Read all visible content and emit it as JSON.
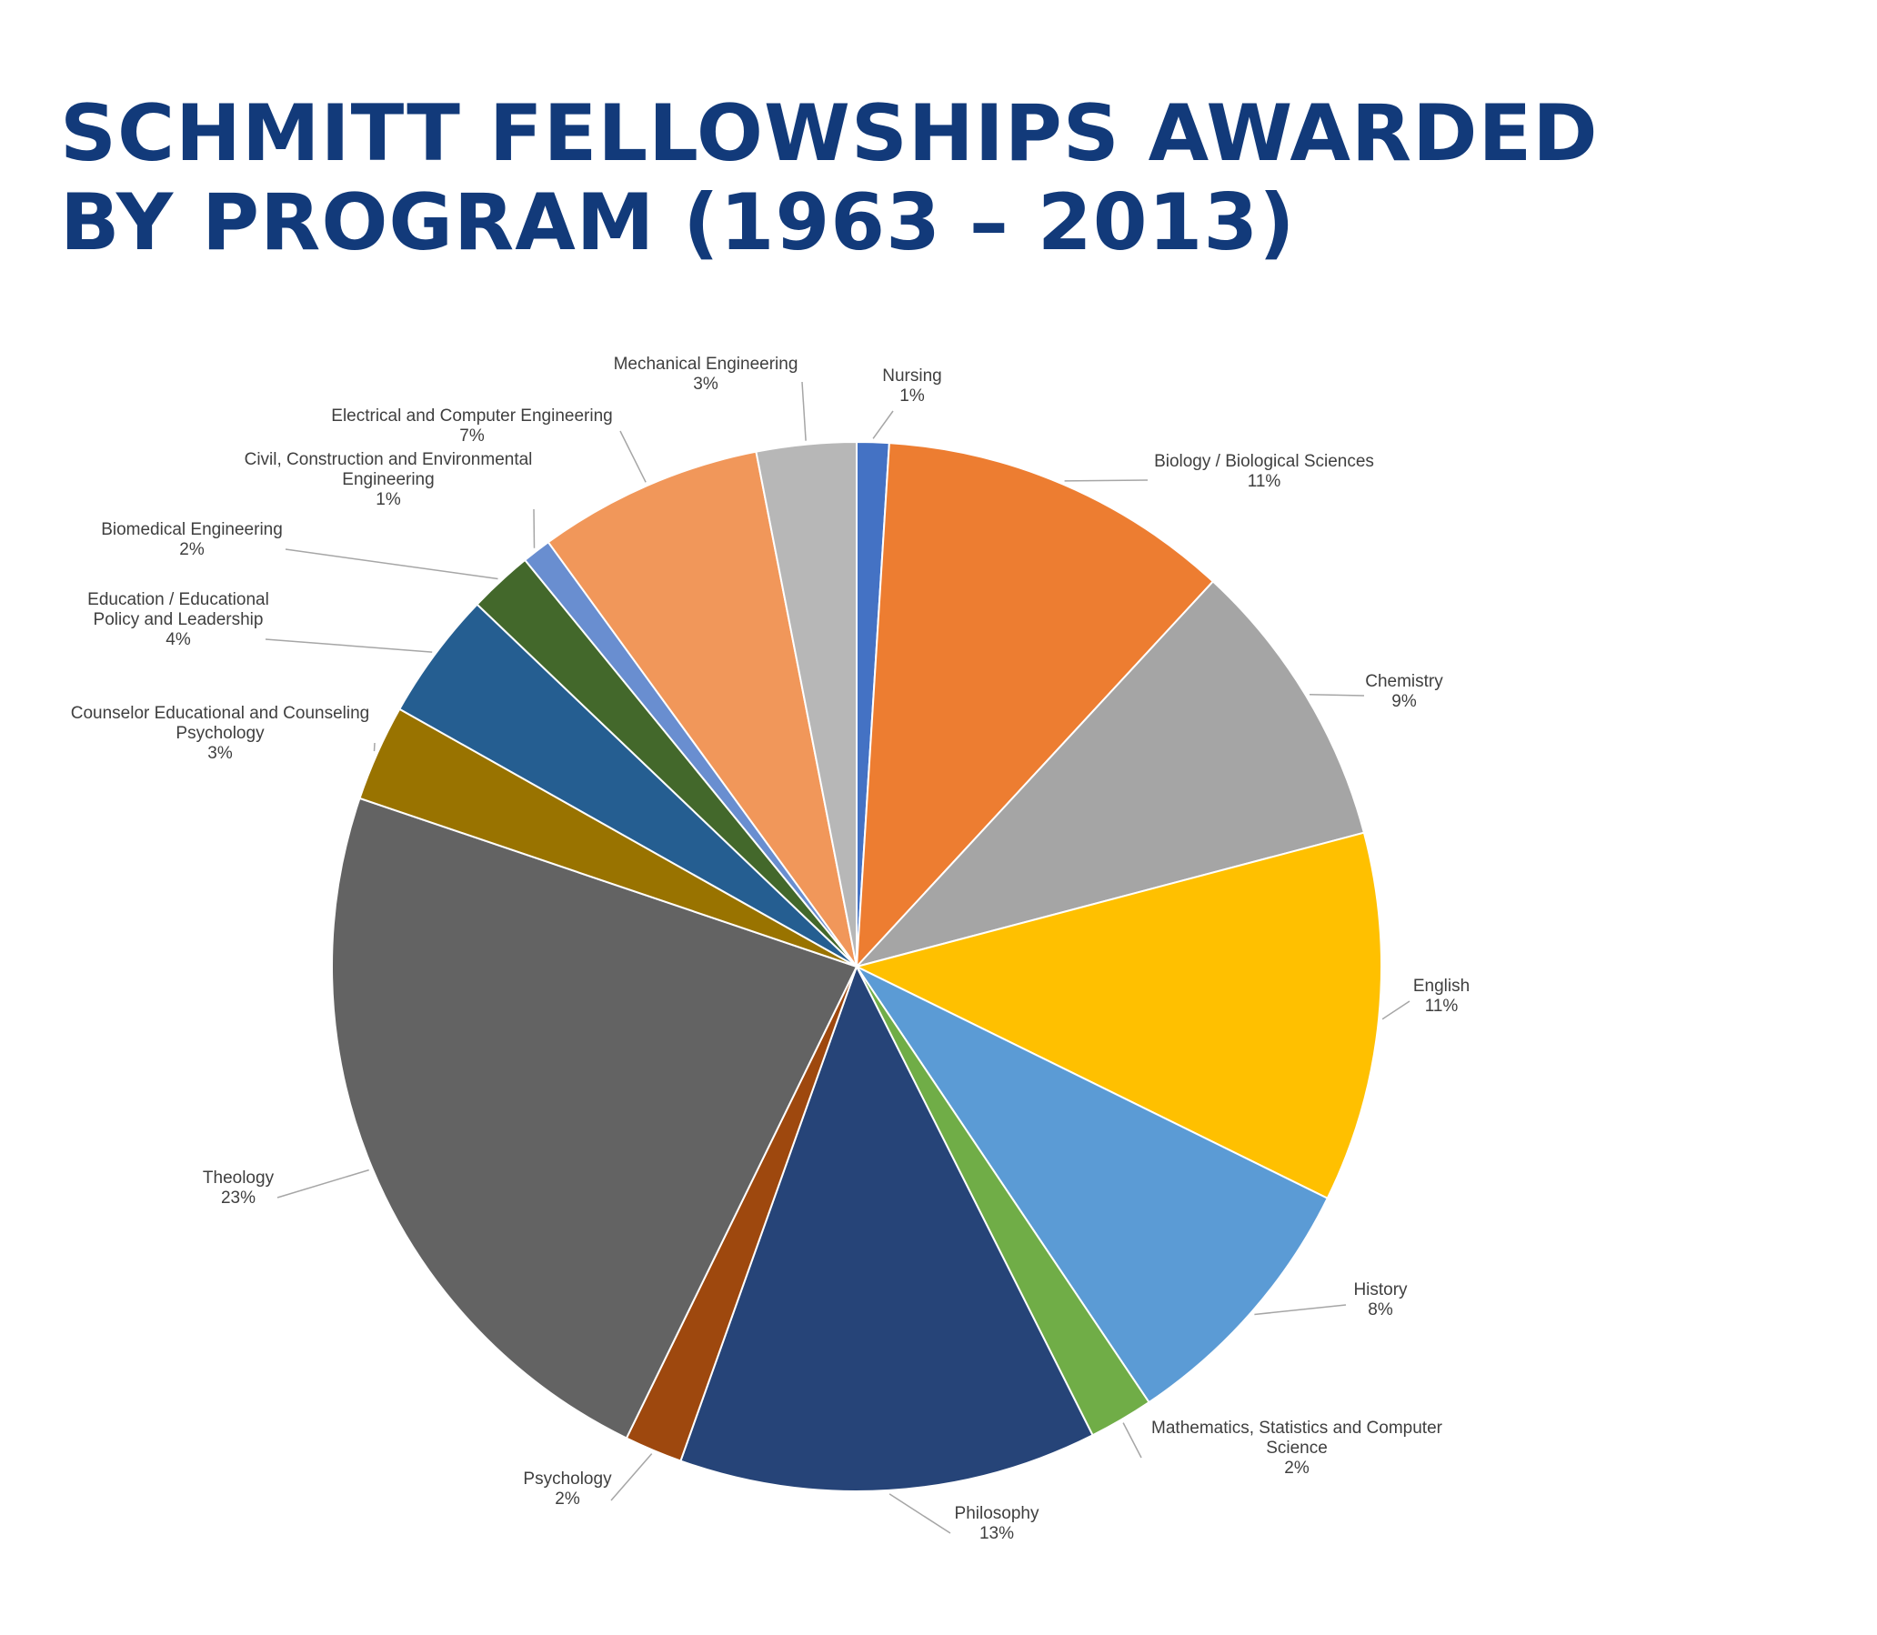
{
  "title": {
    "line1": "SCHMITT FELLOWSHIPS AWARDED",
    "line2": "BY PROGRAM (1963 – 2013)"
  },
  "chart_data": {
    "type": "pie",
    "start": "top",
    "direction": "clockwise",
    "slices": [
      {
        "label": [
          "Nursing"
        ],
        "pct": "1%",
        "value": 1.0,
        "color": "#4472c4"
      },
      {
        "label": [
          "Biology / Biological Sciences"
        ],
        "pct": "11%",
        "value": 11.0,
        "color": "#ed7d31"
      },
      {
        "label": [
          "Chemistry"
        ],
        "pct": "9%",
        "value": 9.1,
        "color": "#a5a5a5"
      },
      {
        "label": [
          "English"
        ],
        "pct": "11%",
        "value": 11.5,
        "color": "#ffc000"
      },
      {
        "label": [
          "History"
        ],
        "pct": "8%",
        "value": 8.4,
        "color": "#5b9bd5"
      },
      {
        "label": [
          "Mathematics, Statistics and Computer",
          "Science"
        ],
        "pct": "2%",
        "value": 2.0,
        "color": "#70ad47"
      },
      {
        "label": [
          "Philosophy"
        ],
        "pct": "13%",
        "value": 13.0,
        "color": "#264478"
      },
      {
        "label": [
          "Psychology"
        ],
        "pct": "2%",
        "value": 1.8,
        "color": "#9e480e"
      },
      {
        "label": [
          "Theology"
        ],
        "pct": "23%",
        "value": 23.2,
        "color": "#636363"
      },
      {
        "label": [
          "Counselor Educational and Counseling",
          "Psychology"
        ],
        "pct": "3%",
        "value": 3.0,
        "color": "#997300"
      },
      {
        "label": [
          "Education / Educational",
          "Policy and Leadership"
        ],
        "pct": "4%",
        "value": 4.0,
        "color": "#255e91"
      },
      {
        "label": [
          "Biomedical Engineering"
        ],
        "pct": "2%",
        "value": 2.0,
        "color": "#43682b"
      },
      {
        "label": [
          "Civil, Construction and Environmental",
          "Engineering"
        ],
        "pct": "1%",
        "value": 0.9,
        "color": "#698ed0"
      },
      {
        "label": [
          "Electrical and Computer Engineering"
        ],
        "pct": "7%",
        "value": 7.0,
        "color": "#f1975a"
      },
      {
        "label": [
          "Mechanical Engineering"
        ],
        "pct": "3%",
        "value": 3.1,
        "color": "#b7b7b7"
      }
    ]
  }
}
